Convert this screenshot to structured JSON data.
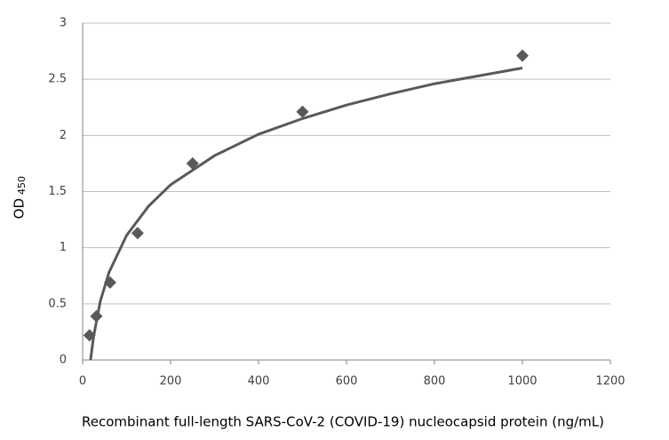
{
  "chart_data": {
    "type": "scatter",
    "x_label": "Recombinant  full-length SARS-CoV-2 (COVID-19) nucleocapsid protein  (ng/mL)",
    "y_label": "OD",
    "y_label_subscript": "450",
    "x": [
      15.6,
      31.25,
      62.5,
      125,
      250,
      500,
      1000
    ],
    "values": [
      0.22,
      0.39,
      0.69,
      1.13,
      1.75,
      2.21,
      2.71
    ],
    "color": "#595959",
    "trendline": {
      "x": [
        18,
        25,
        40,
        60,
        100,
        150,
        200,
        300,
        400,
        500,
        600,
        700,
        800,
        900,
        1000
      ],
      "values": [
        0.0,
        0.21,
        0.52,
        0.78,
        1.11,
        1.37,
        1.56,
        1.82,
        2.01,
        2.15,
        2.27,
        2.37,
        2.46,
        2.53,
        2.6
      ],
      "color": "#595959"
    },
    "xlim": [
      0,
      1200
    ],
    "xticks": [
      0,
      200,
      400,
      600,
      800,
      1000,
      1200
    ],
    "ylim": [
      0,
      3
    ],
    "yticks": [
      0,
      0.5,
      1,
      1.5,
      2,
      2.5,
      3
    ],
    "grid": true
  }
}
